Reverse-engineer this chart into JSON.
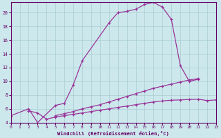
{
  "xlabel": "Windchill (Refroidissement éolien,°C)",
  "background_color": "#cce8ec",
  "grid_color": "#aacdd2",
  "line_color": "#993399",
  "xlim": [
    0,
    23
  ],
  "ylim": [
    4,
    21.5
  ],
  "series1_x": [
    0,
    2,
    3,
    5,
    6,
    7,
    8,
    11,
    12,
    13,
    14,
    15,
    16,
    17,
    18,
    19,
    20,
    21
  ],
  "series1_y": [
    5.0,
    6.0,
    4.0,
    6.5,
    6.8,
    9.5,
    13.0,
    18.5,
    20.0,
    20.2,
    20.5,
    21.2,
    21.5,
    20.8,
    19.0,
    12.3,
    10.0,
    10.3
  ],
  "series2_x": [
    5,
    6,
    7,
    8,
    9,
    10,
    11,
    12,
    13,
    14,
    15,
    16,
    17,
    18,
    19,
    20,
    21
  ],
  "series2_y": [
    5.0,
    5.3,
    5.6,
    6.0,
    6.3,
    6.6,
    7.0,
    7.4,
    7.8,
    8.2,
    8.6,
    9.0,
    9.3,
    9.6,
    9.9,
    10.2,
    10.4
  ],
  "series3_x": [
    2,
    3,
    4,
    5,
    6,
    7,
    8,
    9,
    10,
    11,
    12,
    13,
    14,
    15,
    16,
    17,
    18,
    19,
    20,
    21,
    22,
    23
  ],
  "series3_y": [
    5.7,
    5.4,
    4.5,
    4.8,
    5.0,
    5.2,
    5.4,
    5.6,
    5.8,
    6.0,
    6.2,
    6.4,
    6.6,
    6.8,
    7.0,
    7.15,
    7.25,
    7.3,
    7.35,
    7.4,
    7.2,
    7.3
  ],
  "yticks": [
    4,
    6,
    8,
    10,
    12,
    14,
    16,
    18,
    20
  ],
  "xticks": [
    0,
    1,
    2,
    3,
    4,
    5,
    6,
    7,
    8,
    9,
    10,
    11,
    12,
    13,
    14,
    15,
    16,
    17,
    18,
    19,
    20,
    21,
    22,
    23
  ]
}
